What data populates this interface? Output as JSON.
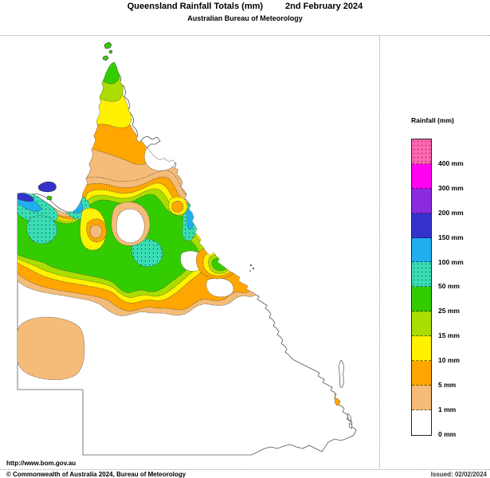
{
  "header": {
    "title": "Queensland Rainfall Totals (mm)",
    "date": "2nd February 2024",
    "subtitle": "Australian Bureau of Meteorology"
  },
  "legend": {
    "title": "Rainfall (mm)",
    "entries": [
      {
        "color": "pink",
        "label": "400 mm",
        "dotted": true
      },
      {
        "color": "magenta",
        "label": "300 mm",
        "dotted": false
      },
      {
        "color": "purple",
        "label": "200 mm",
        "dotted": false
      },
      {
        "color": "blue",
        "label": "150 mm",
        "dotted": false
      },
      {
        "color": "cyan",
        "label": "100 mm",
        "dotted": false
      },
      {
        "color": "teal",
        "label": "50 mm",
        "dotted": true
      },
      {
        "color": "green",
        "label": "25 mm",
        "dotted": false
      },
      {
        "color": "yellowgreen",
        "label": "15 mm",
        "dotted": false
      },
      {
        "color": "yellow",
        "label": "10 mm",
        "dotted": false
      },
      {
        "color": "orange",
        "label": "5 mm",
        "dotted": false
      },
      {
        "color": "tan",
        "label": "1 mm",
        "dotted": false
      },
      {
        "color": "white",
        "label": "0 mm",
        "dotted": false
      }
    ]
  },
  "colors": {
    "pink": "#FF66B2",
    "magenta": "#FF00F0",
    "purple": "#8A2BE2",
    "blue": "#3333CC",
    "cyan": "#1FAEEF",
    "teal": "#3BDDB4",
    "green": "#33CC00",
    "yellowgreen": "#AADD00",
    "yellow": "#FFF200",
    "orange": "#FFA600",
    "tan": "#F4BC78",
    "white": "#FFFFFF"
  },
  "map": {
    "region": "Queensland"
  },
  "footer": {
    "url": "http://www.bom.gov.au",
    "copyright": "© Commonwealth of Australia 2024, Bureau of Meteorology",
    "issued": "Issued: 02/02/2024"
  }
}
